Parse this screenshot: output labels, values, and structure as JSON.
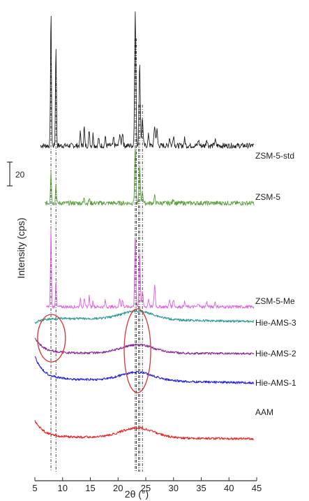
{
  "chart_data": {
    "type": "line",
    "title": "",
    "xlabel": "2θ (°)",
    "ylabel": "Intensity (cps)",
    "xlim": [
      5,
      45
    ],
    "xticks": [
      5,
      10,
      15,
      20,
      25,
      30,
      35,
      40,
      45
    ],
    "scale_bar_label": "20",
    "grid": false,
    "dashed_reference_lines_2theta": [
      7.9,
      8.8,
      23.1,
      23.3,
      23.7,
      23.9,
      24.4
    ],
    "annotations": [
      {
        "shape": "ellipse",
        "center_2theta": 8,
        "spans": [
          "Hie-AMS-3",
          "Hie-AMS-2"
        ]
      },
      {
        "shape": "ellipse",
        "center_2theta": 23.5,
        "spans": [
          "Hie-AMS-3",
          "Hie-AMS-2",
          "Hie-AMS-1"
        ]
      }
    ],
    "series": [
      {
        "name": "ZSM-5-std",
        "color": "#222222",
        "kind": "crystalline",
        "peaks": [
          [
            7.9,
            100
          ],
          [
            8.8,
            75
          ],
          [
            13.2,
            10
          ],
          [
            13.9,
            14
          ],
          [
            14.8,
            12
          ],
          [
            15.5,
            9
          ],
          [
            16.5,
            6
          ],
          [
            17.7,
            7
          ],
          [
            19.2,
            6
          ],
          [
            20.3,
            9
          ],
          [
            20.8,
            10
          ],
          [
            23.1,
            100
          ],
          [
            23.9,
            60
          ],
          [
            24.4,
            20
          ],
          [
            25.5,
            8
          ],
          [
            26.6,
            15
          ],
          [
            27.0,
            12
          ],
          [
            29.3,
            6
          ],
          [
            30.0,
            8
          ],
          [
            32.0,
            5
          ],
          [
            34.5,
            4
          ],
          [
            36.0,
            5
          ],
          [
            37.5,
            4
          ],
          [
            45.0,
            8
          ],
          [
            45.5,
            6
          ]
        ]
      },
      {
        "name": "ZSM-5",
        "color": "#5aa03c",
        "kind": "crystalline",
        "peaks": [
          [
            7.9,
            30
          ],
          [
            8.8,
            18
          ],
          [
            13.9,
            5
          ],
          [
            14.8,
            4
          ],
          [
            23.1,
            50
          ],
          [
            23.9,
            32
          ],
          [
            24.4,
            10
          ],
          [
            26.6,
            6
          ],
          [
            30.0,
            4
          ],
          [
            45.0,
            8
          ]
        ]
      },
      {
        "name": "ZSM-5-Me",
        "color": "#e060e0",
        "kind": "crystalline",
        "peaks": [
          [
            7.9,
            100
          ],
          [
            8.8,
            35
          ],
          [
            13.2,
            10
          ],
          [
            13.9,
            12
          ],
          [
            14.8,
            14
          ],
          [
            15.5,
            8
          ],
          [
            17.7,
            8
          ],
          [
            20.3,
            10
          ],
          [
            20.8,
            8
          ],
          [
            23.1,
            90
          ],
          [
            23.9,
            70
          ],
          [
            24.4,
            20
          ],
          [
            25.5,
            10
          ],
          [
            26.6,
            28
          ],
          [
            29.3,
            8
          ],
          [
            30.0,
            10
          ],
          [
            32.0,
            6
          ],
          [
            34.5,
            5
          ],
          [
            36.0,
            6
          ],
          [
            37.5,
            6
          ],
          [
            45.0,
            25
          ],
          [
            45.5,
            10
          ]
        ]
      },
      {
        "name": "Hie-AMS-3",
        "color": "#2a9a9a",
        "kind": "amorphous",
        "hump_center": 23.5
      },
      {
        "name": "Hie-AMS-2",
        "color": "#8a2a9a",
        "kind": "amorphous",
        "hump_center": 23.5
      },
      {
        "name": "Hie-AMS-1",
        "color": "#2222dd",
        "kind": "amorphous",
        "hump_center": 23.5
      },
      {
        "name": "AAM",
        "color": "#ee2222",
        "kind": "amorphous",
        "hump_center": 23.5
      }
    ]
  }
}
